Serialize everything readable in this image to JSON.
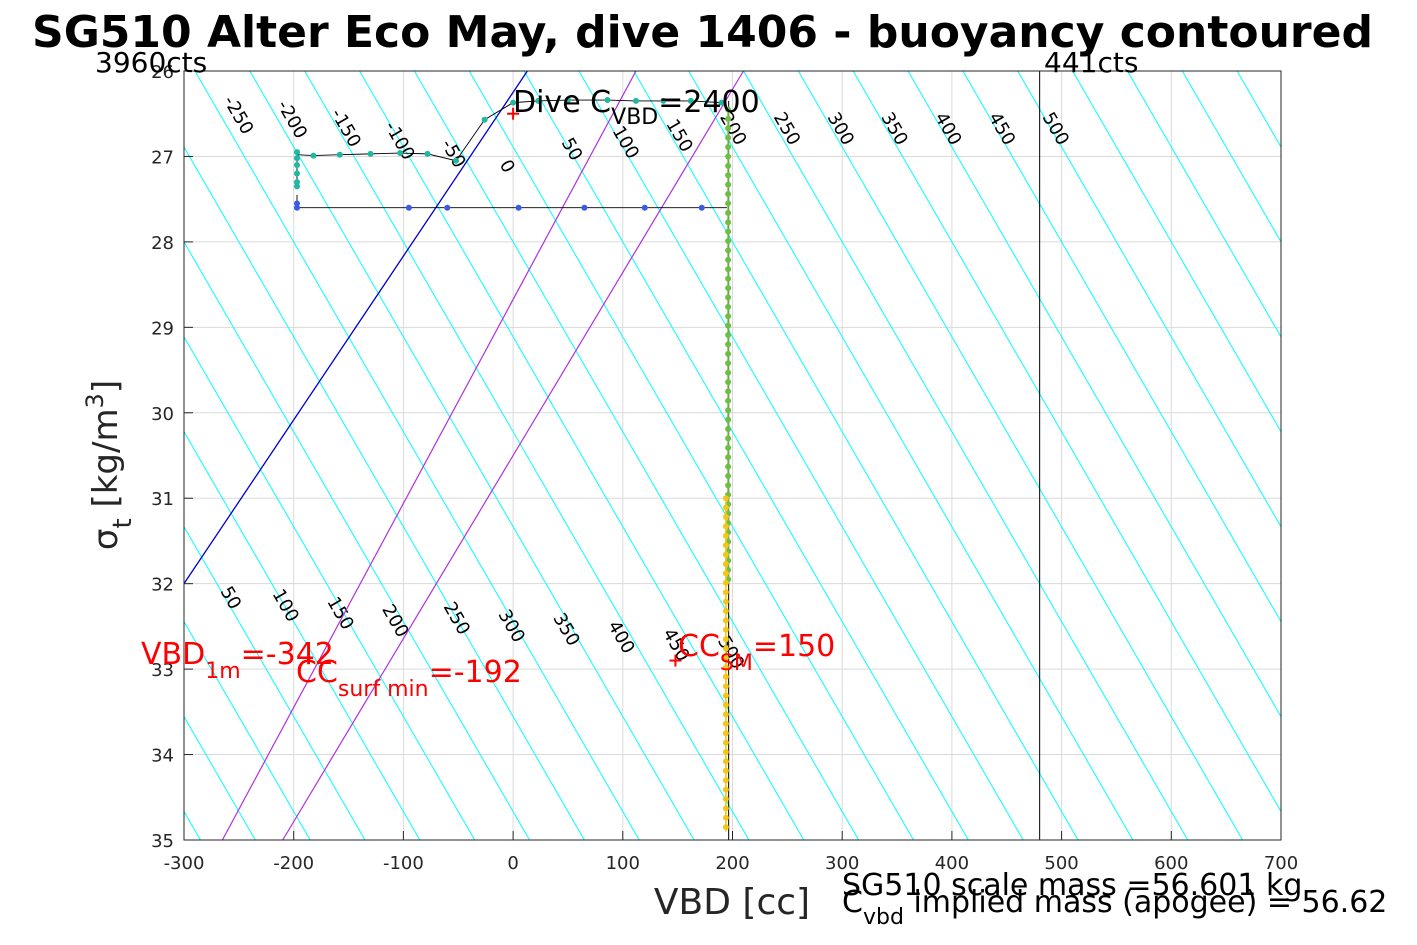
{
  "title": "SG510 Alter Eco May, dive 1406 - buoyancy contoured",
  "colors": {
    "cyan": "#00FFFF",
    "blue": "#0000CC",
    "magenta": "#B030E0",
    "red": "#FF0000",
    "grid": "#DADADA",
    "teal": "#20B8A0",
    "bluepts": "#3A5AE8",
    "green": "#6DBE45",
    "yellow": "#F5C518"
  },
  "chart_data": {
    "type": "scatter",
    "title": "SG510 Alter Eco May, dive 1406 - buoyancy contoured",
    "xlabel": "VBD [cc]",
    "ylabel": "σ_t [kg/m^3]",
    "xlim": [
      -300,
      700
    ],
    "ylim": [
      26,
      35
    ],
    "y_reversed": true,
    "grid": true,
    "xticks": [
      -300,
      -200,
      -100,
      0,
      100,
      200,
      300,
      400,
      500,
      600,
      700
    ],
    "yticks": [
      26,
      27,
      28,
      29,
      30,
      31,
      32,
      33,
      34,
      35
    ],
    "top_left_label": "3960cts",
    "top_right_label": "441cts",
    "vbd_limit_vbd": 480,
    "buoyancy_contours_top": [
      -250,
      -200,
      -150,
      -100,
      -50,
      0,
      50,
      100,
      150,
      200,
      250,
      300,
      350,
      400,
      450,
      500
    ],
    "buoyancy_contours_bottom": [
      50,
      100,
      150,
      200,
      250,
      300,
      350,
      400,
      450,
      500
    ],
    "contour_slope_vbd_per_sigma": 45,
    "blue_line": {
      "vbd_at_26": 13,
      "vbd_at_32": -300
    },
    "magenta_lines": [
      {
        "vbd_at_26": 112,
        "vbd_at_35": -265
      },
      {
        "vbd_at_26": 210,
        "vbd_at_35": -210
      }
    ],
    "dive_c_vbd_label": "Dive C",
    "dive_c_vbd_sub": "VBD",
    "dive_c_vbd_value": "=2400",
    "dive_c_vbd_marker": {
      "vbd": 0,
      "sigma": 26.5
    },
    "annotations": {
      "vbd_1m": {
        "main": "VBD",
        "sub": "1m",
        "value": "=-342"
      },
      "cc_surf_min": {
        "main": "CC",
        "sub": "surf min",
        "value": "=-192"
      },
      "cc_sm": {
        "main": "CC",
        "sub": "SM",
        "value": "=150"
      }
    },
    "scale_mass_text": "SG510 scale mass =56.601 kg",
    "implied_mass": {
      "main": "C",
      "sub": "vbd",
      "rest": " implied mass (apogee) = 56.62"
    },
    "series": [
      {
        "color": "teal",
        "points": [
          [
            -197,
            26.95
          ],
          [
            -197,
            27.02
          ],
          [
            -197,
            27.1
          ],
          [
            -197,
            27.2
          ],
          [
            -197,
            27.3
          ],
          [
            -197,
            27.35
          ],
          [
            -182,
            26.99
          ],
          [
            -158,
            26.98
          ],
          [
            -130,
            26.97
          ],
          [
            -103,
            26.96
          ],
          [
            -78,
            26.97
          ],
          [
            -52,
            27.05
          ],
          [
            -26,
            26.57
          ],
          [
            0,
            26.37
          ],
          [
            23,
            26.35
          ],
          [
            50,
            26.34
          ],
          [
            86,
            26.34
          ],
          [
            112,
            26.35
          ],
          [
            137,
            26.35
          ],
          [
            162,
            26.35
          ],
          [
            190,
            26.37
          ]
        ],
        "path": [
          [
            -197,
            27.35
          ],
          [
            -197,
            26.98
          ],
          [
            -182,
            26.99
          ],
          [
            -158,
            26.98
          ],
          [
            -130,
            26.97
          ],
          [
            -103,
            26.96
          ],
          [
            -78,
            26.97
          ],
          [
            -52,
            27.05
          ],
          [
            -26,
            26.57
          ],
          [
            0,
            26.37
          ],
          [
            23,
            26.35
          ],
          [
            50,
            26.34
          ],
          [
            86,
            26.34
          ],
          [
            112,
            26.35
          ],
          [
            137,
            26.35
          ],
          [
            162,
            26.35
          ],
          [
            190,
            26.37
          ]
        ]
      },
      {
        "color": "bluepts",
        "points": [
          [
            -197,
            27.55
          ],
          [
            -197,
            27.6
          ],
          [
            -95,
            27.6
          ],
          [
            -60,
            27.6
          ],
          [
            5,
            27.6
          ],
          [
            65,
            27.6
          ],
          [
            120,
            27.6
          ],
          [
            172,
            27.6
          ]
        ],
        "path": [
          [
            -197,
            27.45
          ],
          [
            -197,
            27.6
          ],
          [
            -95,
            27.6
          ],
          [
            -60,
            27.6
          ],
          [
            5,
            27.6
          ],
          [
            65,
            27.6
          ],
          [
            120,
            27.6
          ],
          [
            172,
            27.6
          ],
          [
            195,
            27.6
          ]
        ]
      },
      {
        "color": "green",
        "vbd": 196,
        "sigma_from": 26.45,
        "sigma_to": 32.0,
        "sigma_step": 0.11
      },
      {
        "color": "yellow",
        "vbd": 194,
        "sigma_from": 31.0,
        "sigma_to": 34.9,
        "sigma_step": 0.11
      }
    ],
    "cc_sm_marker": {
      "vbd": 148,
      "sigma": 32.9
    }
  }
}
